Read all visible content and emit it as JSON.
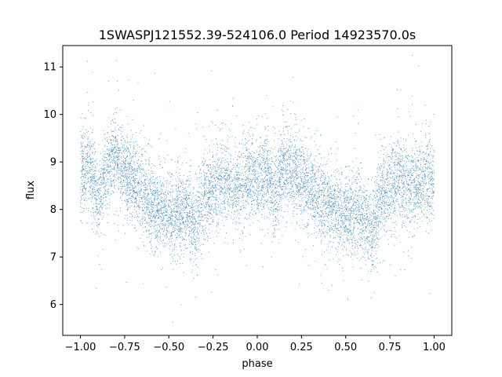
{
  "chart_data": {
    "type": "scatter",
    "title": "1SWASPJ121552.39-524106.0 Period 14923570.0s",
    "xlabel": "phase",
    "ylabel": "flux",
    "xlim": [
      -1.1,
      1.1
    ],
    "ylim": [
      5.35,
      11.45
    ],
    "xticks": [
      -1.0,
      -0.75,
      -0.5,
      -0.25,
      0.0,
      0.25,
      0.5,
      0.75,
      1.0
    ],
    "xtick_labels": [
      "−1.00",
      "−0.75",
      "−0.50",
      "−0.25",
      "0.00",
      "0.25",
      "0.50",
      "0.75",
      "1.00"
    ],
    "yticks": [
      6,
      7,
      8,
      9,
      10,
      11
    ],
    "ytick_labels": [
      "6",
      "7",
      "8",
      "9",
      "10",
      "11"
    ],
    "grid": false,
    "marker_color": "#1f77b4",
    "phase_range": [
      -1.0,
      1.0
    ],
    "series": [
      {
        "trend": {
          "x": [
            -1.0,
            -0.95,
            -0.9,
            -0.85,
            -0.8,
            -0.75,
            -0.7,
            -0.65,
            -0.6,
            -0.55,
            -0.5,
            -0.45,
            -0.4,
            -0.35,
            -0.3,
            -0.25,
            -0.2,
            -0.15,
            -0.1,
            -0.05,
            0.0,
            0.05,
            0.1,
            0.15,
            0.2,
            0.25,
            0.3,
            0.35,
            0.4,
            0.45,
            0.5,
            0.55,
            0.6,
            0.65,
            0.7,
            0.75,
            0.8,
            0.85,
            0.9,
            0.95,
            1.0
          ],
          "y": [
            8.7,
            9.0,
            8.2,
            8.9,
            9.1,
            8.8,
            8.6,
            8.4,
            8.1,
            8.0,
            7.9,
            7.9,
            8.0,
            7.6,
            8.3,
            8.5,
            8.6,
            8.5,
            8.5,
            8.7,
            8.6,
            8.8,
            8.3,
            9.0,
            8.8,
            8.6,
            8.4,
            8.2,
            8.1,
            8.0,
            7.9,
            7.9,
            7.9,
            7.6,
            8.3,
            8.5,
            8.6,
            8.5,
            8.5,
            8.7,
            8.6
          ]
        },
        "scatter_sd": 0.45
      }
    ]
  }
}
